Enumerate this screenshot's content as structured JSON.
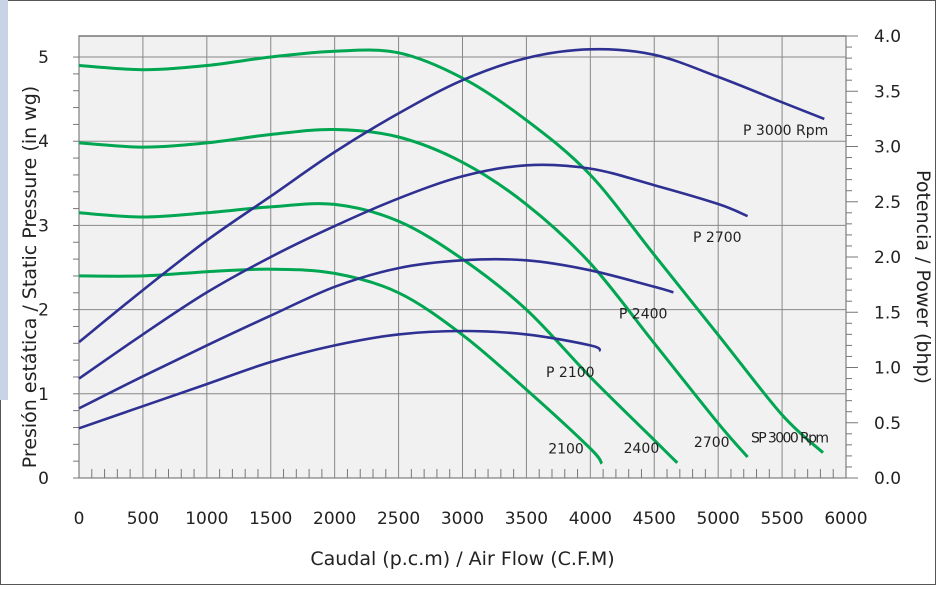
{
  "chart_data": {
    "type": "line",
    "xlabel": "Caudal (p.c.m) / Air Flow (C.F.M)",
    "ylabel": "Presión estática  / Static Pressure (in wg)",
    "y2label": "Potencia / Power (bhp)",
    "xlim": [
      0,
      6000
    ],
    "ylim": [
      0,
      5.25
    ],
    "y2lim": [
      0,
      4.0
    ],
    "x_ticks": [
      "0",
      "500",
      "1000",
      "1500",
      "2000",
      "2500",
      "3000",
      "3500",
      "4000",
      "4500",
      "5000",
      "5500",
      "6000"
    ],
    "y_ticks": [
      "0",
      "1",
      "2",
      "3",
      "4",
      "5"
    ],
    "y2_ticks": [
      "0.0",
      "0.5",
      "1.0",
      "1.5",
      "2.0",
      "2.5",
      "3.0",
      "3.5",
      "4.0"
    ],
    "grid": true,
    "colors": {
      "pressure": "#00a651",
      "power": "#2e3192",
      "panel": "#f1f1f1",
      "grid": "#888888"
    },
    "pressure_series": [
      {
        "label": "2100",
        "x": [
          0,
          500,
          1000,
          1500,
          2000,
          2500,
          3000,
          3500,
          4000,
          4090
        ],
        "y": [
          2.4,
          2.4,
          2.45,
          2.48,
          2.43,
          2.2,
          1.7,
          1.05,
          0.35,
          0.17
        ]
      },
      {
        "label": "2400",
        "x": [
          0,
          500,
          1000,
          1500,
          2000,
          2500,
          3000,
          3500,
          4000,
          4500,
          4680
        ],
        "y": [
          3.15,
          3.1,
          3.15,
          3.22,
          3.25,
          3.05,
          2.6,
          2.0,
          1.2,
          0.45,
          0.18
        ]
      },
      {
        "label": "2700",
        "x": [
          0,
          500,
          1000,
          1500,
          2000,
          2500,
          3000,
          3500,
          4000,
          4500,
          5000,
          5230
        ],
        "y": [
          3.98,
          3.93,
          3.98,
          4.08,
          4.14,
          4.05,
          3.75,
          3.25,
          2.55,
          1.6,
          0.65,
          0.25
        ]
      },
      {
        "label": "SP 3000 Rpm",
        "x": [
          0,
          500,
          1000,
          1500,
          2000,
          2500,
          3000,
          3500,
          4000,
          4500,
          5000,
          5500,
          5820
        ],
        "y": [
          4.9,
          4.85,
          4.9,
          5.0,
          5.07,
          5.05,
          4.75,
          4.25,
          3.6,
          2.65,
          1.7,
          0.75,
          0.3
        ]
      }
    ],
    "power_series": [
      {
        "label": "P 2100",
        "x": [
          0,
          500,
          1000,
          1500,
          2000,
          2500,
          3000,
          3500,
          4000,
          4080
        ],
        "y": [
          0.45,
          0.65,
          0.85,
          1.05,
          1.2,
          1.3,
          1.33,
          1.3,
          1.2,
          1.15
        ]
      },
      {
        "label": "P 2400",
        "x": [
          0,
          500,
          1000,
          1500,
          2000,
          2500,
          3000,
          3500,
          4000,
          4500,
          4650
        ],
        "y": [
          0.63,
          0.92,
          1.2,
          1.47,
          1.73,
          1.9,
          1.97,
          1.97,
          1.88,
          1.73,
          1.68
        ]
      },
      {
        "label": "P 2700",
        "x": [
          0,
          500,
          1000,
          1500,
          2000,
          2500,
          3000,
          3500,
          4000,
          4500,
          5000,
          5230
        ],
        "y": [
          0.9,
          1.3,
          1.68,
          2.0,
          2.28,
          2.53,
          2.73,
          2.83,
          2.8,
          2.65,
          2.48,
          2.37
        ]
      },
      {
        "label": "P 3000 Rpm",
        "x": [
          0,
          500,
          1000,
          1500,
          2000,
          2500,
          3000,
          3500,
          4000,
          4500,
          5000,
          5500,
          5830
        ],
        "y": [
          1.23,
          1.7,
          2.15,
          2.55,
          2.95,
          3.3,
          3.6,
          3.8,
          3.88,
          3.83,
          3.63,
          3.4,
          3.25
        ]
      }
    ]
  }
}
